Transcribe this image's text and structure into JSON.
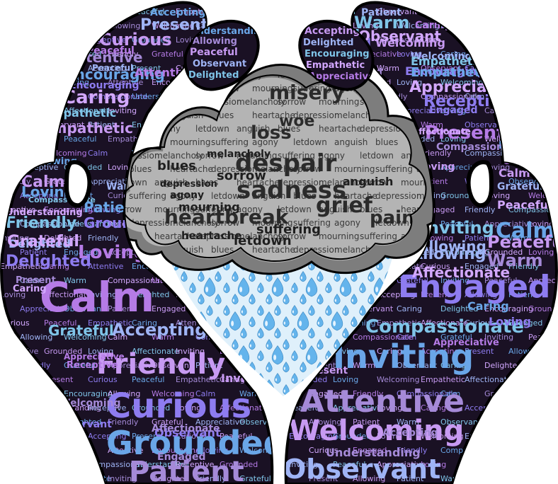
{
  "colors": {
    "background": "#ffffff",
    "hand_fill": "#1a1124",
    "hand_outline": "#000000",
    "hand_word_palette": [
      "#b57be6",
      "#8e7cf0",
      "#6aa6e8",
      "#a58ad8",
      "#c79af2",
      "#9fb4f5",
      "#7fc4e8",
      "#d3a8ff"
    ],
    "cloud_back": "#8a8a8a",
    "cloud_mid": "#b9b9b9",
    "cloud_front": "#d6d6d6",
    "cloud_words": "#2b2b2b",
    "rain": "#64b4ec",
    "rain_highlight": "#e6f4ff",
    "rain_bg": "#cfe8f7"
  },
  "cloud_words": {
    "big": [
      "despair",
      "sadness",
      "grief",
      "heartbreak",
      "misery",
      "pain",
      "loss",
      "woe"
    ],
    "medium": [
      "sorrow",
      "mourning",
      "suffering",
      "agony",
      "letdown",
      "anguish",
      "blues",
      "heartache",
      "depression",
      "melancholy"
    ]
  },
  "left_hand": {
    "big": [
      "Calm",
      "Curious",
      "Grounded",
      "Patient",
      "Friendly"
    ],
    "medium": [
      "Accepting",
      "Grateful",
      "Caring",
      "Loving",
      "Delighted",
      "Encouraging",
      "Attentive",
      "Empathetic",
      "Present",
      "Understanding",
      "Allowing",
      "Peaceful",
      "Observant"
    ],
    "small": [
      "Accepting",
      "Present",
      "Curious",
      "Peaceful",
      "Empathetic",
      "Caring",
      "Attentive",
      "Encouraging",
      "Allowing",
      "Welcoming",
      "Calm",
      "Warm",
      "Compassionate",
      "Understanding",
      "Receptive",
      "Grounded",
      "Loving",
      "Affectionate",
      "Inviting",
      "Delighted",
      "Friendly",
      "Grateful",
      "Appreciative",
      "Observant",
      "Patient",
      "Engaged"
    ]
  },
  "right_hand": {
    "big": [
      "Engaged",
      "Inviting",
      "Attentive",
      "Welcoming",
      "Observant"
    ],
    "medium": [
      "Compassionate",
      "Affectionate",
      "Present",
      "Receptive",
      "Calm",
      "Warm",
      "Peaceful",
      "Allowing",
      "Accepting",
      "Appreciative",
      "Delighted",
      "Encouraging",
      "Empathetic",
      "Understanding",
      "Welcoming"
    ],
    "small": [
      "Patient",
      "Warm",
      "Observant",
      "Caring",
      "Delighted",
      "Encouraging",
      "Grounded",
      "Loving",
      "Welcoming",
      "Empathetic",
      "Affectionate",
      "Curious",
      "Engaged",
      "Friendly",
      "Compassionate",
      "Calm",
      "Grateful",
      "Inviting",
      "Peaceful",
      "Appreciative",
      "Loving",
      "Caring",
      "Accepting",
      "Present",
      "Allowing"
    ]
  }
}
